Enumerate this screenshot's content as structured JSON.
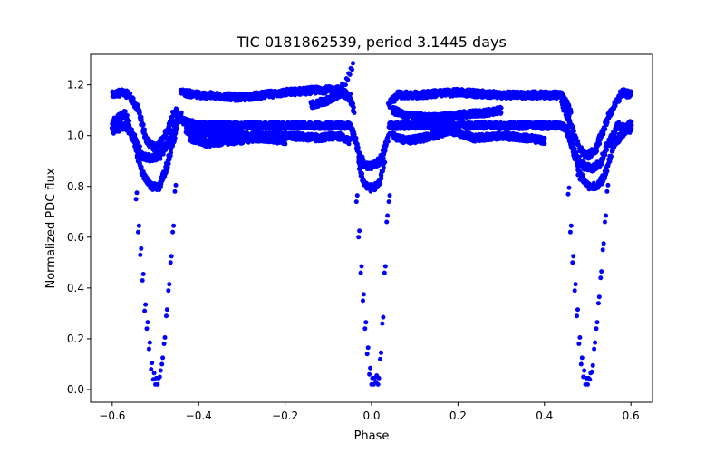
{
  "chart_data": {
    "type": "scatter",
    "title": "TIC 0181862539, period 3.1445 days",
    "xlabel": "Phase",
    "ylabel": "Normalized PDC flux",
    "xlim": [
      -0.65,
      0.65
    ],
    "ylim": [
      -0.05,
      1.32
    ],
    "xticks": [
      -0.6,
      -0.4,
      -0.2,
      0.0,
      0.2,
      0.4,
      0.6
    ],
    "xtick_labels": [
      "−0.6",
      "−0.4",
      "−0.2",
      "0.0",
      "0.2",
      "0.4",
      "0.6"
    ],
    "yticks": [
      0.0,
      0.2,
      0.4,
      0.6,
      0.8,
      1.0,
      1.2
    ],
    "ytick_labels": [
      "0.0",
      "0.2",
      "0.4",
      "0.6",
      "0.8",
      "1.0",
      "1.2"
    ],
    "grid": false,
    "color": "#0000ff",
    "bands": [
      {
        "x": [
          -0.6,
          -0.58,
          -0.56,
          -0.54,
          -0.52,
          -0.5,
          -0.48,
          -0.46,
          -0.45
        ],
        "y": [
          1.16,
          1.17,
          1.16,
          1.1,
          0.98,
          0.95,
          0.99,
          1.08,
          1.1
        ]
      },
      {
        "x": [
          -0.6,
          -0.57,
          -0.55,
          -0.53,
          -0.51,
          -0.49,
          -0.47,
          -0.45,
          -0.44
        ],
        "y": [
          1.02,
          1.04,
          1.0,
          0.92,
          0.91,
          0.92,
          0.97,
          1.06,
          1.08
        ]
      },
      {
        "x": [
          -0.6,
          -0.57,
          -0.55,
          -0.53,
          -0.51,
          -0.49,
          -0.47,
          -0.45
        ],
        "y": [
          1.05,
          1.09,
          0.98,
          0.85,
          0.8,
          0.8,
          0.9,
          1.04
        ]
      },
      {
        "x": [
          -0.44,
          -0.4,
          -0.3,
          -0.2,
          -0.12,
          -0.07,
          -0.05,
          -0.04
        ],
        "y": [
          1.17,
          1.16,
          1.15,
          1.17,
          1.18,
          1.18,
          1.15,
          1.1
        ]
      },
      {
        "x": [
          -0.44,
          -0.4,
          -0.3,
          -0.2,
          -0.12,
          -0.08,
          -0.05,
          -0.04
        ],
        "y": [
          1.06,
          1.04,
          1.04,
          1.04,
          1.04,
          1.04,
          1.04,
          1.0
        ]
      },
      {
        "x": [
          -0.43,
          -0.38,
          -0.3,
          -0.2,
          -0.12,
          -0.08,
          -0.05
        ],
        "y": [
          1.02,
          1.01,
          1.0,
          1.0,
          0.99,
          1.0,
          0.98
        ]
      },
      {
        "x": [
          -0.42,
          -0.38,
          -0.32,
          -0.25,
          -0.2
        ],
        "y": [
          0.99,
          0.97,
          0.98,
          0.99,
          0.98
        ]
      },
      {
        "x": [
          -0.14,
          -0.1,
          -0.07,
          -0.05
        ],
        "y": [
          1.12,
          1.14,
          1.17,
          1.15
        ]
      },
      {
        "x": [
          -0.04,
          -0.03,
          -0.02,
          -0.01,
          0.0,
          0.01,
          0.02,
          0.03,
          0.04
        ],
        "y": [
          1.0,
          0.93,
          0.9,
          0.88,
          0.88,
          0.89,
          0.9,
          0.95,
          1.0
        ]
      },
      {
        "x": [
          -0.03,
          -0.02,
          -0.01,
          0.0,
          0.01,
          0.02,
          0.03
        ],
        "y": [
          0.9,
          0.82,
          0.8,
          0.79,
          0.8,
          0.82,
          0.9
        ]
      },
      {
        "x": [
          0.04,
          0.06,
          0.1,
          0.2,
          0.3,
          0.4,
          0.44,
          0.46
        ],
        "y": [
          1.12,
          1.16,
          1.16,
          1.17,
          1.16,
          1.16,
          1.16,
          1.1
        ]
      },
      {
        "x": [
          0.04,
          0.06,
          0.1,
          0.2,
          0.3,
          0.4,
          0.44,
          0.46
        ],
        "y": [
          1.04,
          1.04,
          1.04,
          1.04,
          1.04,
          1.04,
          1.04,
          1.0
        ]
      },
      {
        "x": [
          0.05,
          0.08,
          0.12,
          0.18,
          0.24,
          0.3,
          0.36,
          0.4
        ],
        "y": [
          1.0,
          0.98,
          0.99,
          1.02,
          0.99,
          1.0,
          0.99,
          0.98
        ]
      },
      {
        "x": [
          0.05,
          0.08,
          0.14,
          0.2,
          0.26,
          0.3
        ],
        "y": [
          1.1,
          1.08,
          1.07,
          1.08,
          1.09,
          1.1
        ]
      },
      {
        "x": [
          0.44,
          0.46,
          0.48,
          0.5,
          0.52,
          0.54,
          0.56,
          0.58,
          0.6
        ],
        "y": [
          1.13,
          1.05,
          0.95,
          0.92,
          0.95,
          1.04,
          1.12,
          1.17,
          1.16
        ]
      },
      {
        "x": [
          0.45,
          0.47,
          0.49,
          0.51,
          0.53,
          0.55,
          0.57,
          0.6
        ],
        "y": [
          1.03,
          0.93,
          0.88,
          0.87,
          0.89,
          0.98,
          1.04,
          1.02
        ]
      },
      {
        "x": [
          0.46,
          0.48,
          0.5,
          0.52,
          0.54,
          0.56,
          0.6
        ],
        "y": [
          0.99,
          0.85,
          0.8,
          0.8,
          0.84,
          0.96,
          1.05
        ]
      }
    ],
    "dips": [
      {
        "x": [
          -0.545,
          -0.54,
          -0.535,
          -0.53,
          -0.525,
          -0.52,
          -0.515,
          -0.51,
          -0.505,
          -0.5,
          -0.495,
          -0.49,
          -0.485,
          -0.48,
          -0.475,
          -0.47,
          -0.465,
          -0.46,
          -0.455
        ],
        "y": [
          0.75,
          0.62,
          0.53,
          0.43,
          0.31,
          0.24,
          0.16,
          0.08,
          0.04,
          0.02,
          0.02,
          0.05,
          0.1,
          0.18,
          0.29,
          0.39,
          0.5,
          0.62,
          0.78
        ]
      },
      {
        "x": [
          -0.035,
          -0.03,
          -0.025,
          -0.02,
          -0.015,
          -0.01,
          -0.005,
          0.0,
          0.005,
          0.01,
          0.015,
          0.02,
          0.025,
          0.03,
          0.035,
          0.04
        ],
        "y": [
          0.74,
          0.6,
          0.46,
          0.35,
          0.24,
          0.14,
          0.06,
          0.02,
          0.02,
          0.03,
          0.02,
          0.12,
          0.26,
          0.46,
          0.66,
          0.74
        ]
      },
      {
        "x": [
          0.455,
          0.46,
          0.465,
          0.47,
          0.475,
          0.48,
          0.485,
          0.49,
          0.495,
          0.5,
          0.505,
          0.51,
          0.515,
          0.52,
          0.525,
          0.53,
          0.535,
          0.54,
          0.545
        ],
        "y": [
          0.77,
          0.62,
          0.5,
          0.39,
          0.29,
          0.18,
          0.1,
          0.05,
          0.02,
          0.02,
          0.04,
          0.07,
          0.16,
          0.24,
          0.34,
          0.44,
          0.55,
          0.66,
          0.78
        ]
      },
      {
        "x": [
          -0.07,
          -0.06,
          -0.055,
          -0.05,
          -0.045
        ],
        "y": [
          1.18,
          1.2,
          1.22,
          1.24,
          1.26
        ]
      }
    ]
  }
}
